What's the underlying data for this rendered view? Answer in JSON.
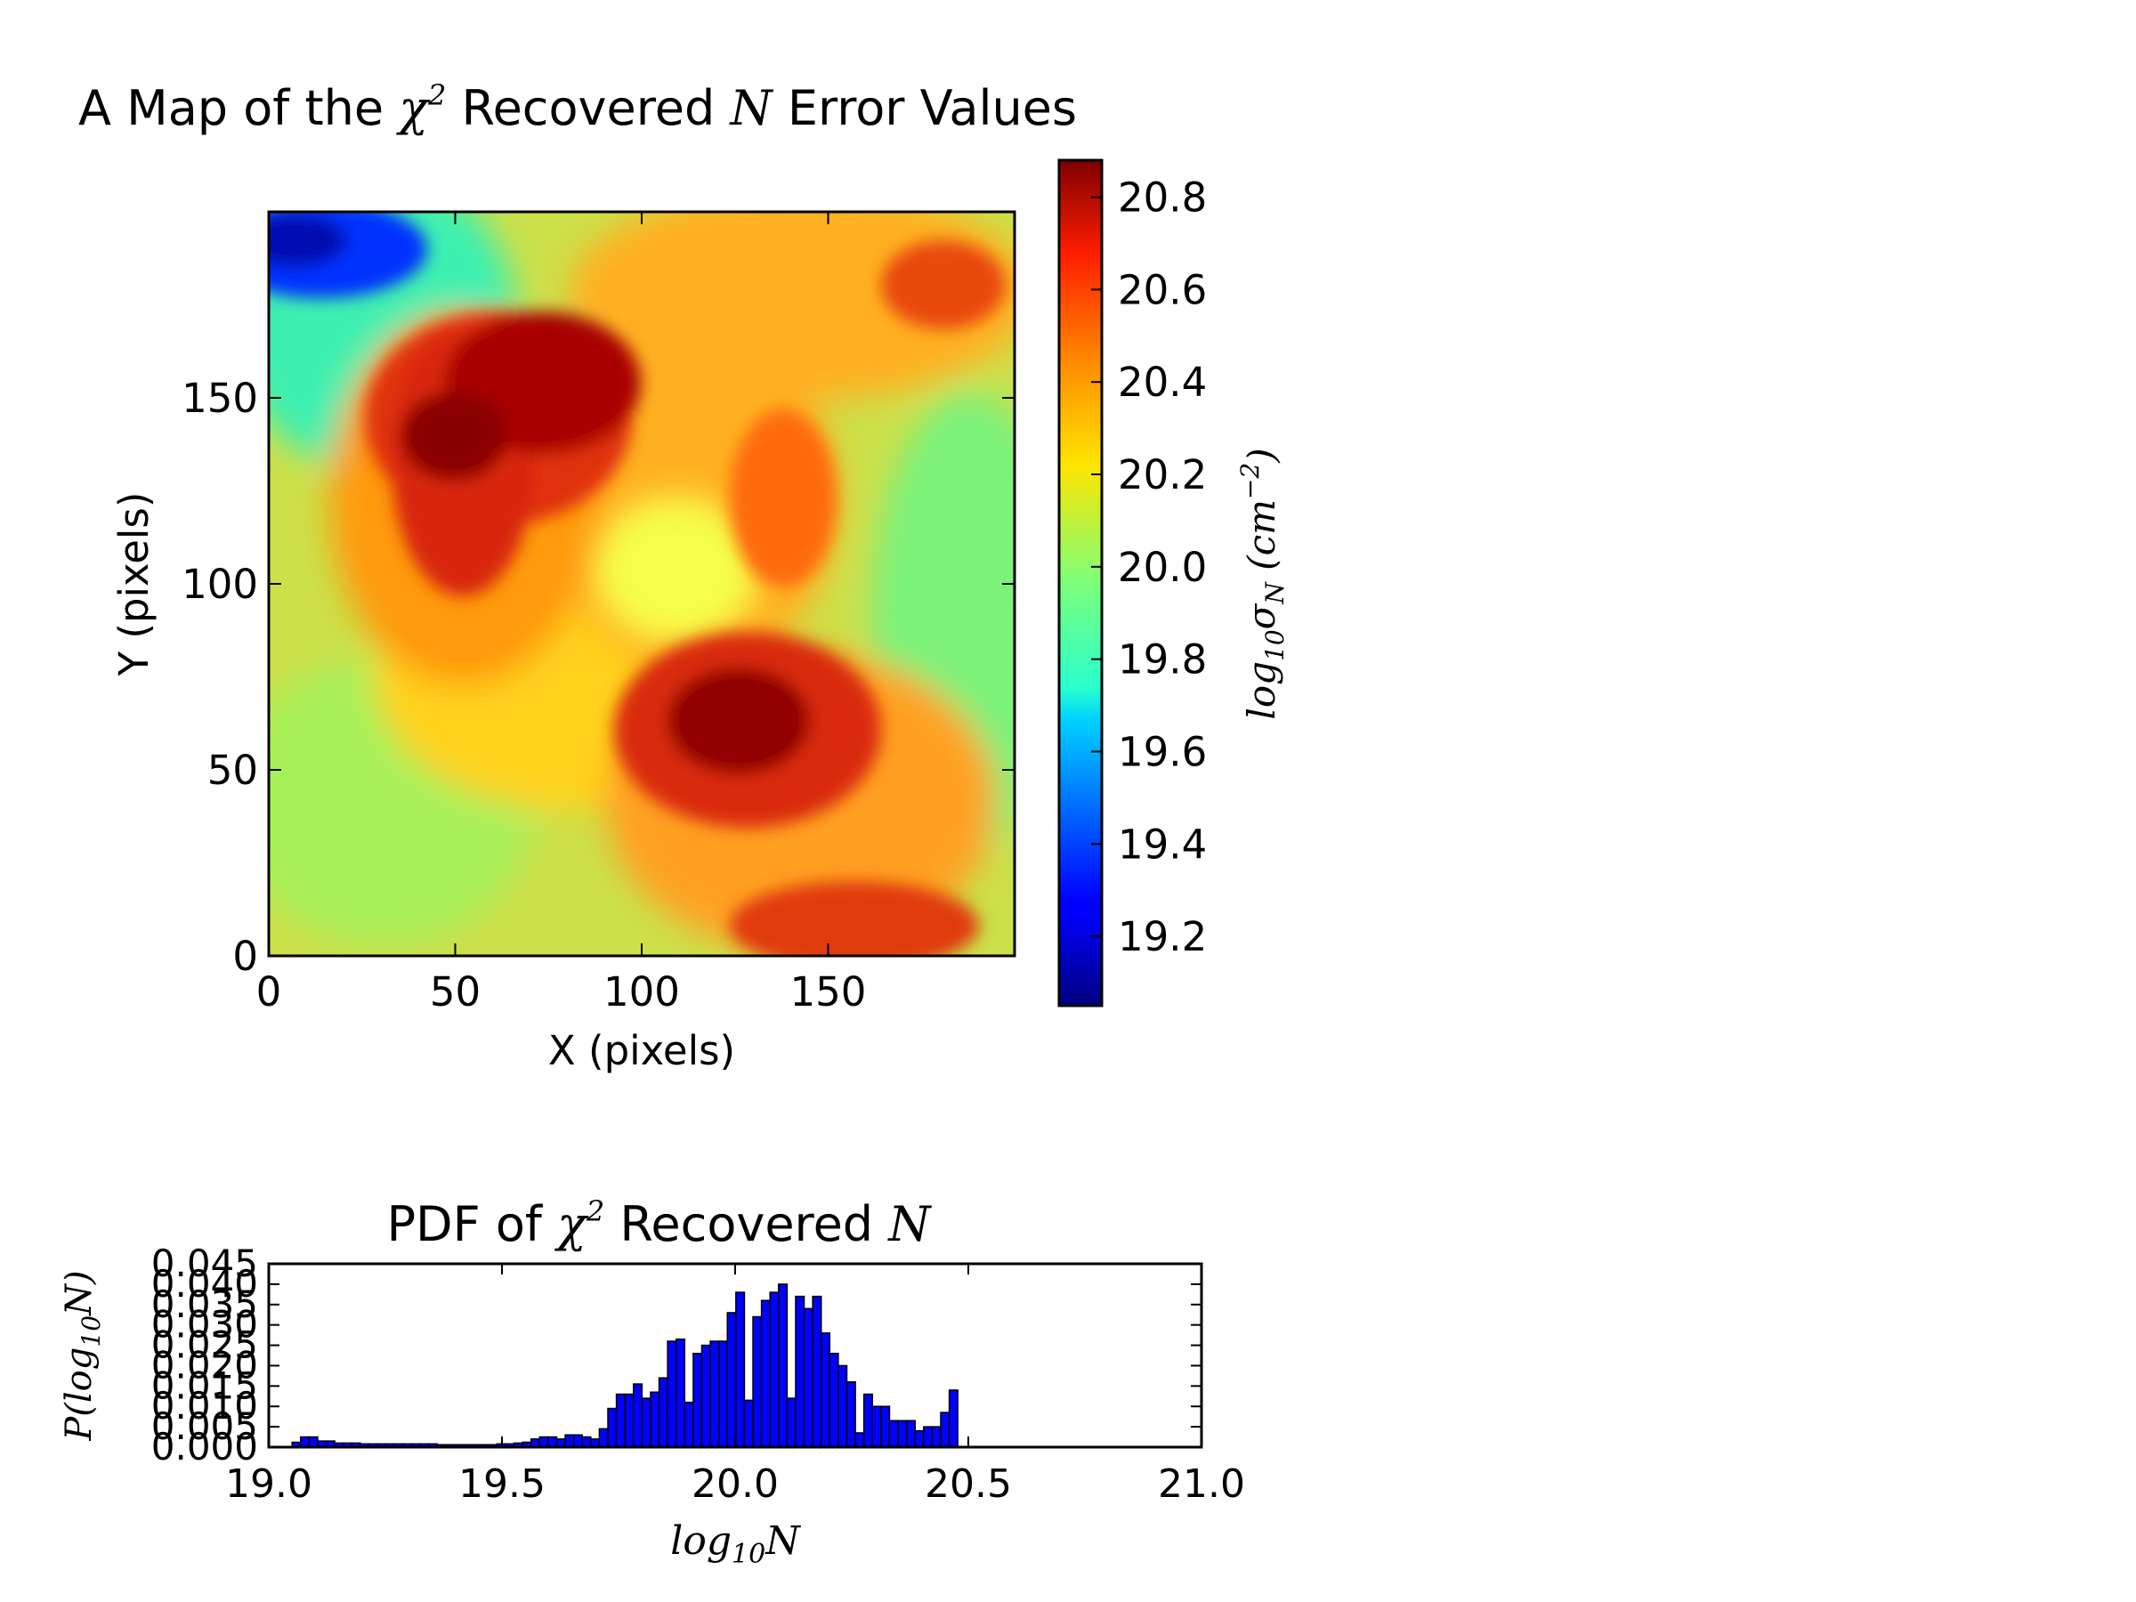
{
  "chart_data": [
    {
      "type": "heatmap",
      "title": {
        "pre": "A Map of the ",
        "chi": "χ",
        "chi_sup": "2",
        "mid": " Recovered ",
        "var": "N",
        "post": " Error Values"
      },
      "xlabel": "X (pixels)",
      "ylabel": "Y (pixels)",
      "xlim": [
        0,
        200
      ],
      "ylim": [
        0,
        200
      ],
      "xticks": [
        0,
        50,
        100,
        150
      ],
      "yticks": [
        0,
        50,
        100,
        150
      ],
      "colormap": "jet",
      "colorbar": {
        "range": [
          19.05,
          20.88
        ],
        "ticks": [
          "19.2",
          "19.4",
          "19.6",
          "19.8",
          "20.0",
          "20.2",
          "20.4",
          "20.6",
          "20.8"
        ],
        "label": {
          "base": "log",
          "sub": "10",
          "sigma": "σ",
          "sigma_sub": "N",
          "unit_open": " (cm",
          "unit_sup": "−2",
          "unit_close": ")"
        }
      }
    },
    {
      "type": "bar",
      "title": {
        "pre": "PDF of ",
        "chi": "χ",
        "chi_sup": "2",
        "mid": " Recovered ",
        "var": "N"
      },
      "xlabel": {
        "base": "log",
        "sub": "10",
        "var": "N"
      },
      "ylabel": {
        "pre": "P(log",
        "sub": "10",
        "post": "N)"
      },
      "xlim": [
        19.0,
        21.0
      ],
      "ylim": [
        0,
        0.045
      ],
      "xticks": [
        "19.0",
        "19.5",
        "20.0",
        "20.5",
        "21.0"
      ],
      "yticks": [
        "0.000",
        "0.005",
        "0.010",
        "0.015",
        "0.020",
        "0.025",
        "0.030",
        "0.035",
        "0.040",
        "0.045"
      ],
      "bar_color": "#0000ff",
      "bin_start": 19.05,
      "bin_width": 0.0183,
      "values": [
        0.0012,
        0.0025,
        0.0025,
        0.0015,
        0.0015,
        0.001,
        0.001,
        0.001,
        0.0008,
        0.0008,
        0.0008,
        0.0008,
        0.0008,
        0.0008,
        0.0008,
        0.0008,
        0.0008,
        0.0006,
        0.0006,
        0.0006,
        0.0006,
        0.0006,
        0.0006,
        0.0006,
        0.0008,
        0.0008,
        0.001,
        0.0012,
        0.002,
        0.0025,
        0.0025,
        0.002,
        0.003,
        0.003,
        0.0025,
        0.002,
        0.0045,
        0.0095,
        0.013,
        0.013,
        0.0155,
        0.012,
        0.0135,
        0.017,
        0.026,
        0.0265,
        0.011,
        0.023,
        0.025,
        0.026,
        0.026,
        0.033,
        0.038,
        0.0115,
        0.032,
        0.036,
        0.038,
        0.04,
        0.012,
        0.037,
        0.034,
        0.037,
        0.028,
        0.023,
        0.02,
        0.016,
        0.0035,
        0.013,
        0.01,
        0.01,
        0.0065,
        0.0065,
        0.0065,
        0.004,
        0.005,
        0.005,
        0.0085,
        0.014
      ]
    }
  ]
}
